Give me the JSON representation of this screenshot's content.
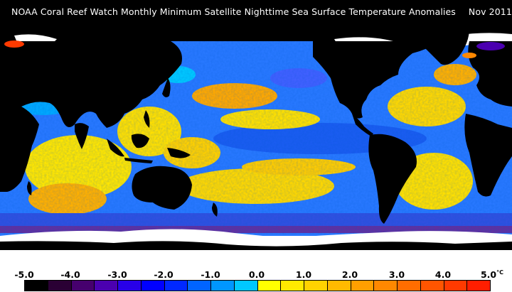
{
  "title": "NOAA Coral Reef Watch Monthly Minimum Satellite Nighttime Sea Surface Temperature Anomalies",
  "date": "Nov 2011",
  "legend": {
    "labels": [
      "-5.0",
      "-4.0",
      "-3.0",
      "-2.0",
      "-1.0",
      "0.0",
      "1.0",
      "2.0",
      "3.0",
      "4.0",
      "5.0"
    ],
    "unit": "°C",
    "colors": [
      "#000000",
      "#2a0034",
      "#46006e",
      "#4b00b0",
      "#2800e8",
      "#0000ff",
      "#0028ff",
      "#0064ff",
      "#0096ff",
      "#00c8ff",
      "#ffff00",
      "#ffea00",
      "#ffd200",
      "#ffba00",
      "#ff9f00",
      "#ff8800",
      "#ff6d00",
      "#ff5500",
      "#ff3a00",
      "#ff1e00"
    ]
  },
  "palette": {
    "land": "#000000",
    "ice": "#ffffff",
    "ocean_cool": "#2878ff",
    "ocean_neutral": "#ffe600",
    "ocean_warm": "#ffa000"
  }
}
